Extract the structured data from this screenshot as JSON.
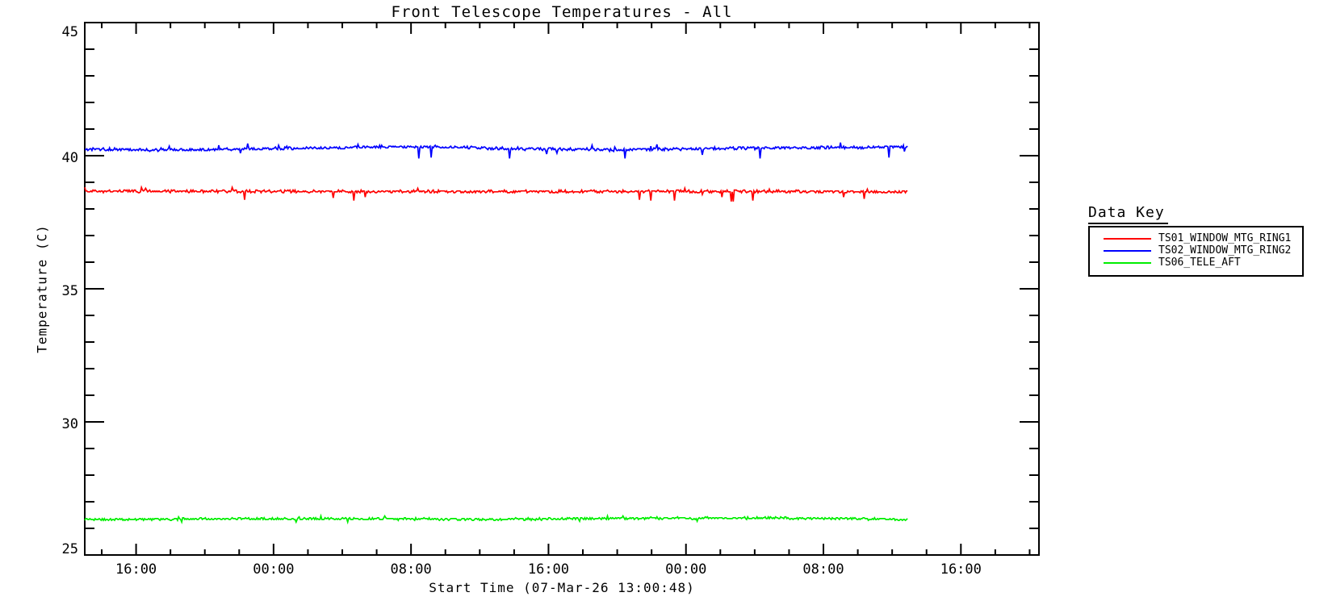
{
  "chart_data": {
    "type": "line",
    "title": "Front Telescope Temperatures - All",
    "xlabel": "Start Time (07-Mar-26 13:00:48)",
    "ylabel": "Temperature (C)",
    "background": "#ffffff",
    "axis_color": "#000000",
    "grid": false,
    "x_axis": {
      "start_time": "07-Mar-26 13:00:48",
      "span_hours": 55.53,
      "major_ticks": [
        {
          "t": 2.987,
          "label": "16:00"
        },
        {
          "t": 10.987,
          "label": "00:00"
        },
        {
          "t": 18.987,
          "label": "08:00"
        },
        {
          "t": 26.987,
          "label": "16:00"
        },
        {
          "t": 34.987,
          "label": "00:00"
        },
        {
          "t": 42.987,
          "label": "08:00"
        },
        {
          "t": 50.987,
          "label": "16:00"
        }
      ],
      "minor_start_t": 0.987,
      "minor_step_hours": 2
    },
    "y_axis": {
      "min": 25,
      "max": 45,
      "major_ticks": [
        25,
        30,
        35,
        40,
        45
      ],
      "tick_labels": [
        "25",
        "30",
        "35",
        "40",
        "45"
      ],
      "minor_step": 1
    },
    "legend": {
      "title": "Data Key",
      "position": "right-outside"
    },
    "data_end_hours": 47.9,
    "series": [
      {
        "name": "TS01_WINDOW_MTG_RING1",
        "color": "#ff0000",
        "mean_c": 38.65,
        "control_points": [
          [
            0,
            38.67
          ],
          [
            10,
            38.66
          ],
          [
            24,
            38.65
          ],
          [
            36,
            38.66
          ],
          [
            47.9,
            38.64
          ]
        ],
        "noise_amp": 0.045,
        "spike_down_prob": 0.018,
        "spike_down_max": 0.42,
        "spike_up_prob": 0.012,
        "spike_up_max": 0.18
      },
      {
        "name": "TS02_WINDOW_MTG_RING2",
        "color": "#0000ff",
        "mean_c": 40.27,
        "control_points": [
          [
            0,
            40.25
          ],
          [
            5,
            40.21
          ],
          [
            13,
            40.28
          ],
          [
            17,
            40.33
          ],
          [
            21,
            40.33
          ],
          [
            24,
            40.27
          ],
          [
            28,
            40.24
          ],
          [
            31,
            40.22
          ],
          [
            34,
            40.25
          ],
          [
            38,
            40.28
          ],
          [
            42,
            40.3
          ],
          [
            45,
            40.32
          ],
          [
            47.9,
            40.33
          ]
        ],
        "noise_amp": 0.05,
        "spike_down_prob": 0.015,
        "spike_down_max": 0.5,
        "spike_up_prob": 0.012,
        "spike_up_max": 0.2
      },
      {
        "name": "TS06_TELE_AFT",
        "color": "#00ee00",
        "mean_c": 26.35,
        "control_points": [
          [
            0,
            26.33
          ],
          [
            8,
            26.36
          ],
          [
            16,
            26.36
          ],
          [
            24,
            26.34
          ],
          [
            32,
            26.38
          ],
          [
            40,
            26.39
          ],
          [
            44,
            26.37
          ],
          [
            47.9,
            26.33
          ]
        ],
        "noise_amp": 0.04,
        "spike_down_prob": 0.012,
        "spike_down_max": 0.17,
        "spike_up_prob": 0.01,
        "spike_up_max": 0.12
      }
    ]
  }
}
